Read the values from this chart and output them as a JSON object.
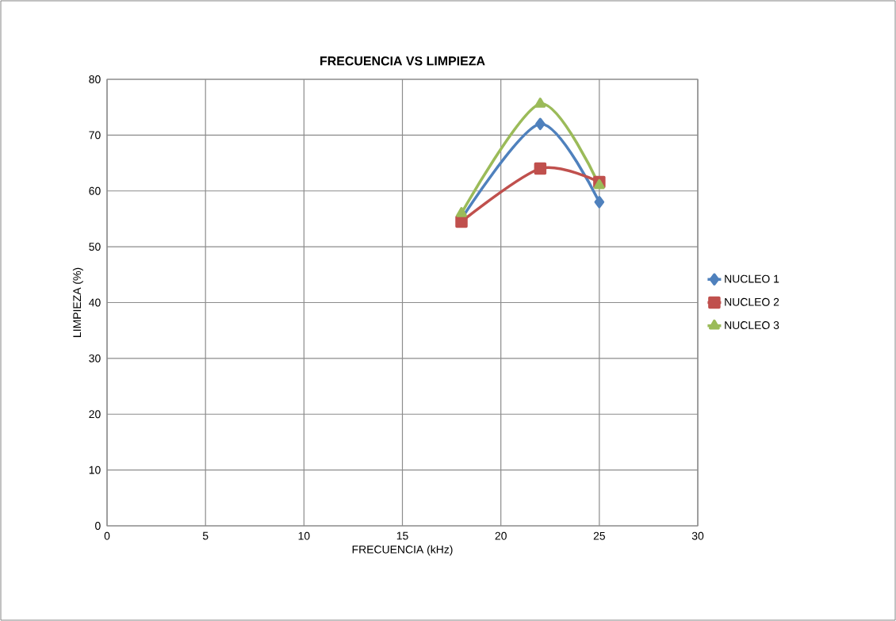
{
  "chart_data": {
    "type": "line",
    "title": "FRECUENCIA VS LIMPIEZA",
    "xlabel": "FRECUENCIA (kHz)",
    "ylabel": "LIMPIEZA (%)",
    "x": [
      18,
      22,
      25
    ],
    "series": [
      {
        "name": "NUCLEO 1",
        "color": "#4f81bd",
        "marker": "diamond",
        "values": [
          55,
          72,
          58
        ]
      },
      {
        "name": "NUCLEO 2",
        "color": "#c0504d",
        "marker": "square",
        "values": [
          54.5,
          64,
          61.6
        ]
      },
      {
        "name": "NUCLEO 3",
        "color": "#9bbb59",
        "marker": "triangle",
        "values": [
          56,
          75.6,
          61
        ]
      }
    ],
    "xlim": [
      0,
      30
    ],
    "xticks": [
      0,
      5,
      10,
      15,
      20,
      25,
      30
    ],
    "ylim": [
      0,
      80
    ],
    "yticks": [
      0,
      10,
      20,
      30,
      40,
      50,
      60,
      70,
      80
    ],
    "grid": true,
    "legend": "right",
    "line_style": "solid"
  }
}
